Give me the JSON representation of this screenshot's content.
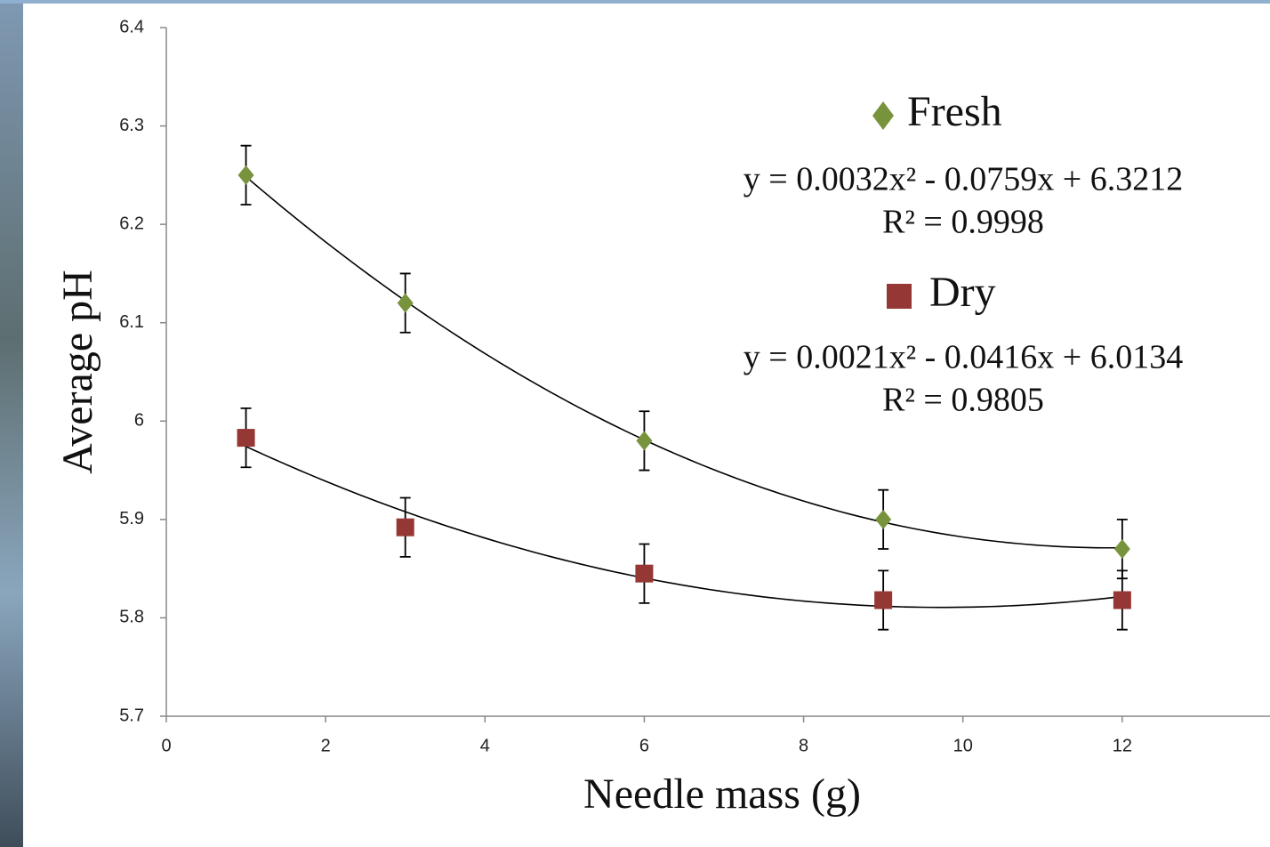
{
  "chart_data": {
    "type": "scatter",
    "x_label": "Needle mass (g)",
    "y_label": "Average pH",
    "x": [
      1,
      3,
      6,
      9,
      12
    ],
    "series": [
      {
        "name": "Fresh",
        "color": "#77933c",
        "marker": "diamond",
        "values": [
          6.25,
          6.12,
          5.98,
          5.9,
          5.87
        ],
        "errors": [
          0.03,
          0.03,
          0.03,
          0.03,
          0.03
        ],
        "equation": "y = 0.0032x² - 0.0759x + 6.3212",
        "r2": "R² = 0.9998"
      },
      {
        "name": "Dry",
        "color": "#953735",
        "marker": "square",
        "values": [
          5.983,
          5.892,
          5.845,
          5.818,
          5.818
        ],
        "errors": [
          0.03,
          0.03,
          0.03,
          0.03,
          0.03
        ],
        "equation": "y = 0.0021x² - 0.0416x + 6.0134",
        "r2": "R² = 0.9805"
      }
    ],
    "trendline": "polynomial",
    "xlim": [
      0,
      14
    ],
    "xticks": [
      0,
      2,
      4,
      6,
      8,
      10,
      12
    ],
    "ylim": [
      5.7,
      6.4
    ],
    "yticks": [
      5.7,
      5.8,
      5.9,
      6,
      6.1,
      6.2,
      6.3,
      6.4
    ]
  }
}
